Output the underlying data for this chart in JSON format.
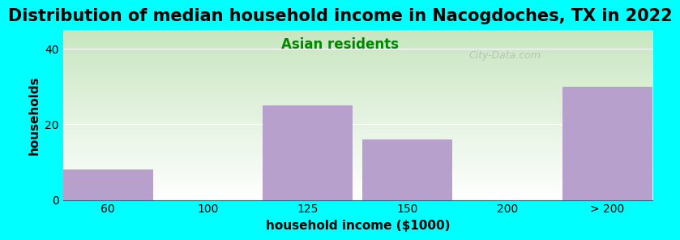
{
  "title": "Distribution of median household income in Nacogdoches, TX in 2022",
  "subtitle": "Asian residents",
  "xlabel": "household income ($1000)",
  "ylabel": "households",
  "bar_labels": [
    "60",
    "100",
    "125",
    "150",
    "200",
    "> 200"
  ],
  "bar_values": [
    8,
    0,
    25,
    16,
    0,
    30
  ],
  "bar_color": "#b8a0cc",
  "background_color": "#00ffff",
  "plot_bg_gradient_top": "#c8e6c0",
  "plot_bg_gradient_bottom": "#ffffff",
  "ylim": [
    0,
    45
  ],
  "yticks": [
    0,
    20,
    40
  ],
  "title_fontsize": 15,
  "subtitle_fontsize": 12,
  "axis_label_fontsize": 11,
  "tick_fontsize": 10,
  "watermark": "City-Data.com"
}
